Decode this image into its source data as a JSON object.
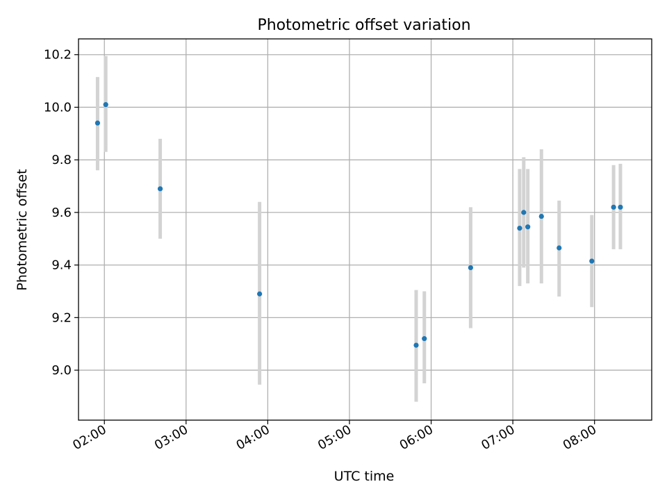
{
  "chart_data": {
    "type": "scatter",
    "title": "Photometric offset variation",
    "xlabel": "UTC time",
    "ylabel": "Photometric offset",
    "x_tick_labels": [
      "02:00",
      "03:00",
      "04:00",
      "05:00",
      "06:00",
      "07:00",
      "08:00"
    ],
    "y_tick_labels": [
      "9.0",
      "9.2",
      "9.4",
      "9.6",
      "9.8",
      "10.0",
      "10.2"
    ],
    "xlim": [
      "01:41",
      "08:42"
    ],
    "ylim": [
      8.81,
      10.26
    ],
    "grid": true,
    "colors": {
      "point": "#1f77b4",
      "errorbar": "#d3d3d3"
    },
    "series": [
      {
        "points": [
          {
            "x": "01:55",
            "y": 9.94,
            "ylow": 9.76,
            "yhigh": 10.115
          },
          {
            "x": "02:01",
            "y": 10.01,
            "ylow": 9.83,
            "yhigh": 10.195
          },
          {
            "x": "02:41",
            "y": 9.69,
            "ylow": 9.5,
            "yhigh": 9.88
          },
          {
            "x": "03:54",
            "y": 9.29,
            "ylow": 8.945,
            "yhigh": 9.64
          },
          {
            "x": "05:49",
            "y": 9.095,
            "ylow": 8.88,
            "yhigh": 9.305
          },
          {
            "x": "05:55",
            "y": 9.12,
            "ylow": 8.95,
            "yhigh": 9.3
          },
          {
            "x": "06:29",
            "y": 9.39,
            "ylow": 9.16,
            "yhigh": 9.62
          },
          {
            "x": "07:05",
            "y": 9.54,
            "ylow": 9.32,
            "yhigh": 9.765
          },
          {
            "x": "07:08",
            "y": 9.6,
            "ylow": 9.39,
            "yhigh": 9.81
          },
          {
            "x": "07:11",
            "y": 9.545,
            "ylow": 9.33,
            "yhigh": 9.765
          },
          {
            "x": "07:21",
            "y": 9.585,
            "ylow": 9.33,
            "yhigh": 9.84
          },
          {
            "x": "07:34",
            "y": 9.465,
            "ylow": 9.28,
            "yhigh": 9.645
          },
          {
            "x": "07:58",
            "y": 9.415,
            "ylow": 9.24,
            "yhigh": 9.59
          },
          {
            "x": "08:14",
            "y": 9.62,
            "ylow": 9.46,
            "yhigh": 9.78
          },
          {
            "x": "08:19",
            "y": 9.62,
            "ylow": 9.46,
            "yhigh": 9.785
          }
        ]
      }
    ]
  }
}
